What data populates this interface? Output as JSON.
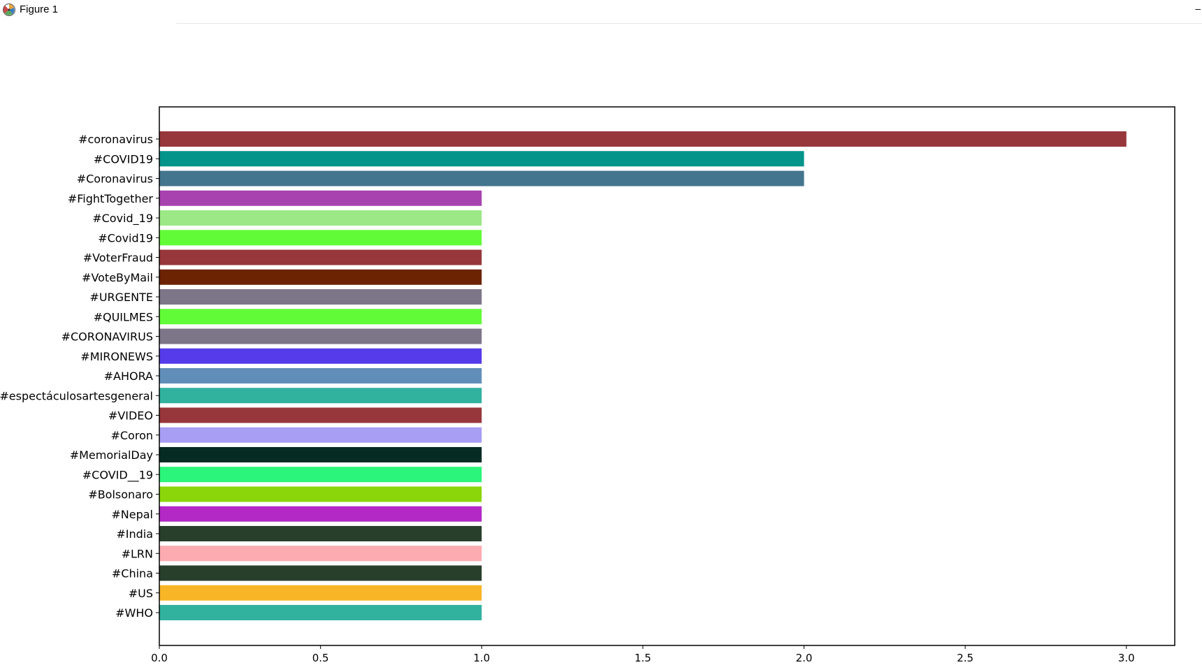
{
  "window": {
    "title": "Figure 1",
    "icon": "matplotlib-figure-icon",
    "minimize_label": "–"
  },
  "chart_data": {
    "type": "bar",
    "orientation": "horizontal",
    "title": "",
    "xlabel": "",
    "ylabel": "",
    "xlim": [
      0,
      3.15
    ],
    "xticks": [
      0.0,
      0.5,
      1.0,
      1.5,
      2.0,
      2.5,
      3.0
    ],
    "xtick_labels": [
      "0.0",
      "0.5",
      "1.0",
      "1.5",
      "2.0",
      "2.5",
      "3.0"
    ],
    "grid": false,
    "legend": "none",
    "categories": [
      "#coronavirus",
      "#COVID19",
      "#Coronavirus",
      "#FightTogether",
      "#Covid_19",
      "#Covid19",
      "#VoterFraud",
      "#VoteByMail",
      "#URGENTE",
      "#QUILMES",
      "#CORONAVIRUS",
      "#MIRONEWS",
      "#AHORA",
      "#espectáculosartesgeneral",
      "#VIDEO",
      "#Coron",
      "#MemorialDay",
      "#COVID__19",
      "#Bolsonaro",
      "#Nepal",
      "#India",
      "#LRN",
      "#China",
      "#US",
      "#WHO"
    ],
    "values": [
      3,
      2,
      2,
      1,
      1,
      1,
      1,
      1,
      1,
      1,
      1,
      1,
      1,
      1,
      1,
      1,
      1,
      1,
      1,
      1,
      1,
      1,
      1,
      1,
      1
    ],
    "colors": [
      "#97373c",
      "#05948a",
      "#44758e",
      "#a742ae",
      "#9ce886",
      "#62fb37",
      "#97373c",
      "#6b2302",
      "#7d7688",
      "#62fb37",
      "#7d7688",
      "#553bea",
      "#618eb9",
      "#31b29f",
      "#97373c",
      "#a89ef3",
      "#062b23",
      "#2bf57a",
      "#8bd60a",
      "#b229c6",
      "#283f2c",
      "#fcabb0",
      "#283f2c",
      "#f8b627",
      "#31b29f"
    ]
  }
}
